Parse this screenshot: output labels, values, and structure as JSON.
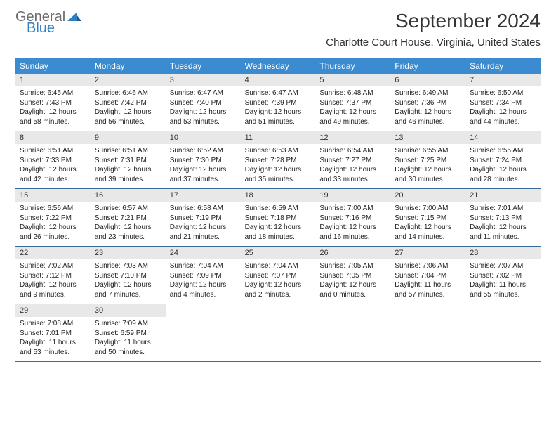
{
  "logo": {
    "part1": "General",
    "part2": "Blue"
  },
  "title": "September 2024",
  "location": "Charlotte Court House, Virginia, United States",
  "colors": {
    "header_bg": "#3a8bd0",
    "header_text": "#ffffff",
    "daynum_bg": "#e8e8e8",
    "week_border": "#3a6a9a",
    "logo_gray": "#6b6b6b",
    "logo_blue": "#2f7fc3",
    "text": "#222222",
    "background": "#ffffff"
  },
  "typography": {
    "title_fontsize": 28,
    "location_fontsize": 15,
    "dayheader_fontsize": 12,
    "daynum_fontsize": 11,
    "info_fontsize": 10
  },
  "day_headers": [
    "Sunday",
    "Monday",
    "Tuesday",
    "Wednesday",
    "Thursday",
    "Friday",
    "Saturday"
  ],
  "weeks": [
    [
      {
        "n": "1",
        "sr": "6:45 AM",
        "ss": "7:43 PM",
        "dl": "12 hours and 58 minutes."
      },
      {
        "n": "2",
        "sr": "6:46 AM",
        "ss": "7:42 PM",
        "dl": "12 hours and 56 minutes."
      },
      {
        "n": "3",
        "sr": "6:47 AM",
        "ss": "7:40 PM",
        "dl": "12 hours and 53 minutes."
      },
      {
        "n": "4",
        "sr": "6:47 AM",
        "ss": "7:39 PM",
        "dl": "12 hours and 51 minutes."
      },
      {
        "n": "5",
        "sr": "6:48 AM",
        "ss": "7:37 PM",
        "dl": "12 hours and 49 minutes."
      },
      {
        "n": "6",
        "sr": "6:49 AM",
        "ss": "7:36 PM",
        "dl": "12 hours and 46 minutes."
      },
      {
        "n": "7",
        "sr": "6:50 AM",
        "ss": "7:34 PM",
        "dl": "12 hours and 44 minutes."
      }
    ],
    [
      {
        "n": "8",
        "sr": "6:51 AM",
        "ss": "7:33 PM",
        "dl": "12 hours and 42 minutes."
      },
      {
        "n": "9",
        "sr": "6:51 AM",
        "ss": "7:31 PM",
        "dl": "12 hours and 39 minutes."
      },
      {
        "n": "10",
        "sr": "6:52 AM",
        "ss": "7:30 PM",
        "dl": "12 hours and 37 minutes."
      },
      {
        "n": "11",
        "sr": "6:53 AM",
        "ss": "7:28 PM",
        "dl": "12 hours and 35 minutes."
      },
      {
        "n": "12",
        "sr": "6:54 AM",
        "ss": "7:27 PM",
        "dl": "12 hours and 33 minutes."
      },
      {
        "n": "13",
        "sr": "6:55 AM",
        "ss": "7:25 PM",
        "dl": "12 hours and 30 minutes."
      },
      {
        "n": "14",
        "sr": "6:55 AM",
        "ss": "7:24 PM",
        "dl": "12 hours and 28 minutes."
      }
    ],
    [
      {
        "n": "15",
        "sr": "6:56 AM",
        "ss": "7:22 PM",
        "dl": "12 hours and 26 minutes."
      },
      {
        "n": "16",
        "sr": "6:57 AM",
        "ss": "7:21 PM",
        "dl": "12 hours and 23 minutes."
      },
      {
        "n": "17",
        "sr": "6:58 AM",
        "ss": "7:19 PM",
        "dl": "12 hours and 21 minutes."
      },
      {
        "n": "18",
        "sr": "6:59 AM",
        "ss": "7:18 PM",
        "dl": "12 hours and 18 minutes."
      },
      {
        "n": "19",
        "sr": "7:00 AM",
        "ss": "7:16 PM",
        "dl": "12 hours and 16 minutes."
      },
      {
        "n": "20",
        "sr": "7:00 AM",
        "ss": "7:15 PM",
        "dl": "12 hours and 14 minutes."
      },
      {
        "n": "21",
        "sr": "7:01 AM",
        "ss": "7:13 PM",
        "dl": "12 hours and 11 minutes."
      }
    ],
    [
      {
        "n": "22",
        "sr": "7:02 AM",
        "ss": "7:12 PM",
        "dl": "12 hours and 9 minutes."
      },
      {
        "n": "23",
        "sr": "7:03 AM",
        "ss": "7:10 PM",
        "dl": "12 hours and 7 minutes."
      },
      {
        "n": "24",
        "sr": "7:04 AM",
        "ss": "7:09 PM",
        "dl": "12 hours and 4 minutes."
      },
      {
        "n": "25",
        "sr": "7:04 AM",
        "ss": "7:07 PM",
        "dl": "12 hours and 2 minutes."
      },
      {
        "n": "26",
        "sr": "7:05 AM",
        "ss": "7:05 PM",
        "dl": "12 hours and 0 minutes."
      },
      {
        "n": "27",
        "sr": "7:06 AM",
        "ss": "7:04 PM",
        "dl": "11 hours and 57 minutes."
      },
      {
        "n": "28",
        "sr": "7:07 AM",
        "ss": "7:02 PM",
        "dl": "11 hours and 55 minutes."
      }
    ],
    [
      {
        "n": "29",
        "sr": "7:08 AM",
        "ss": "7:01 PM",
        "dl": "11 hours and 53 minutes."
      },
      {
        "n": "30",
        "sr": "7:09 AM",
        "ss": "6:59 PM",
        "dl": "11 hours and 50 minutes."
      },
      null,
      null,
      null,
      null,
      null
    ]
  ],
  "labels": {
    "sunrise": "Sunrise:",
    "sunset": "Sunset:",
    "daylight": "Daylight:"
  }
}
